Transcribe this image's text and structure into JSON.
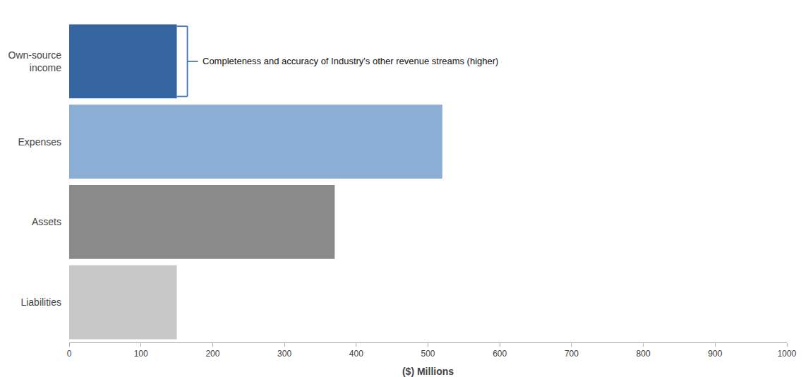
{
  "chart_data": {
    "type": "bar",
    "orientation": "horizontal",
    "categories": [
      "Own-source\nincome",
      "Expenses",
      "Assets",
      "Liabilities"
    ],
    "values": [
      150,
      520,
      370,
      150
    ],
    "colors": [
      "#3565a0",
      "#8BAFD4",
      "#8A8A8A",
      "#C8C8C8"
    ],
    "xlabel": "($) Millions",
    "xlim": [
      0,
      1000
    ],
    "xticks": [
      0,
      100,
      200,
      300,
      400,
      500,
      600,
      700,
      800,
      900,
      1000
    ],
    "grid": false,
    "annotations": [
      {
        "text": "Completeness and accuracy of Industry's other revenue streams (higher)",
        "category": "Own-source\nincome",
        "color": "#4472C4"
      }
    ]
  }
}
